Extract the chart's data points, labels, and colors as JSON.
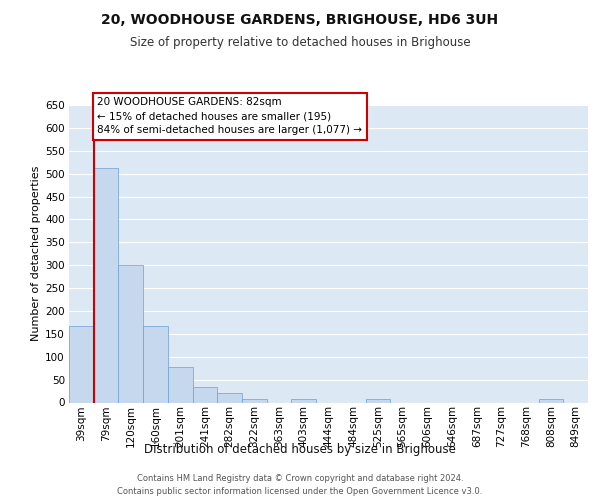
{
  "title": "20, WOODHOUSE GARDENS, BRIGHOUSE, HD6 3UH",
  "subtitle": "Size of property relative to detached houses in Brighouse",
  "xlabel": "Distribution of detached houses by size in Brighouse",
  "ylabel": "Number of detached properties",
  "bar_color": "#c5d8ee",
  "bar_edge_color": "#6b9fd4",
  "background_color": "#dde8f5",
  "grid_color": "#ffffff",
  "categories": [
    "39sqm",
    "79sqm",
    "120sqm",
    "160sqm",
    "201sqm",
    "241sqm",
    "282sqm",
    "322sqm",
    "363sqm",
    "403sqm",
    "444sqm",
    "484sqm",
    "525sqm",
    "565sqm",
    "606sqm",
    "646sqm",
    "687sqm",
    "727sqm",
    "768sqm",
    "808sqm",
    "849sqm"
  ],
  "values": [
    168,
    512,
    301,
    168,
    78,
    33,
    20,
    7,
    0,
    7,
    0,
    0,
    7,
    0,
    0,
    0,
    0,
    0,
    0,
    7,
    0
  ],
  "ylim": [
    0,
    650
  ],
  "yticks": [
    0,
    50,
    100,
    150,
    200,
    250,
    300,
    350,
    400,
    450,
    500,
    550,
    600,
    650
  ],
  "property_line_x": 1.0,
  "annotation_text": "20 WOODHOUSE GARDENS: 82sqm\n← 15% of detached houses are smaller (195)\n84% of semi-detached houses are larger (1,077) →",
  "annotation_box_facecolor": "#ffffff",
  "annotation_box_edgecolor": "#cc0000",
  "property_line_color": "#cc0000",
  "footer_line1": "Contains HM Land Registry data © Crown copyright and database right 2024.",
  "footer_line2": "Contains public sector information licensed under the Open Government Licence v3.0."
}
